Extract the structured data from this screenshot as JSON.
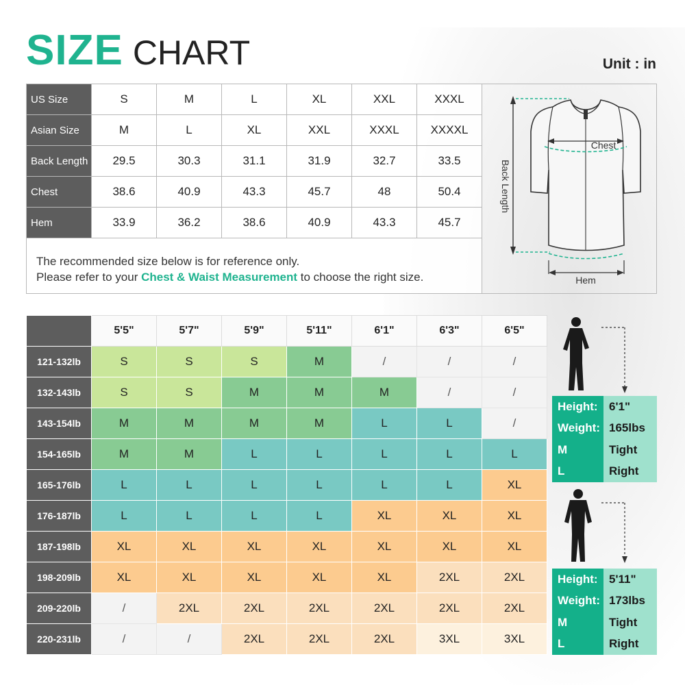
{
  "header": {
    "title_strong": "SIZE",
    "title_light": "CHART",
    "unit": "Unit : in"
  },
  "measurements": {
    "rows": [
      {
        "label": "US Size",
        "values": [
          "S",
          "M",
          "L",
          "XL",
          "XXL",
          "XXXL"
        ]
      },
      {
        "label": "Asian Size",
        "values": [
          "M",
          "L",
          "XL",
          "XXL",
          "XXXL",
          "XXXXL"
        ]
      },
      {
        "label": "Back Length",
        "values": [
          "29.5",
          "30.3",
          "31.1",
          "31.9",
          "32.7",
          "33.5"
        ]
      },
      {
        "label": "Chest",
        "values": [
          "38.6",
          "40.9",
          "43.3",
          "45.7",
          "48",
          "50.4"
        ]
      },
      {
        "label": "Hem",
        "values": [
          "33.9",
          "36.2",
          "38.6",
          "40.9",
          "43.3",
          "45.7"
        ]
      }
    ]
  },
  "note": {
    "line1": "The recommended size below is for reference only.",
    "line2_pre": "Please refer to your ",
    "line2_em": "Chest & Waist Measurement",
    "line2_post": " to choose the right size."
  },
  "diagram": {
    "chest": "Chest",
    "back_length": "Back Length",
    "hem": "Hem"
  },
  "fit_chart": {
    "heights": [
      "5'5\"",
      "5'7\"",
      "5'9\"",
      "5'11\"",
      "6'1\"",
      "6'3\"",
      "6'5\""
    ],
    "rows": [
      {
        "weight": "121-132lb",
        "sizes": [
          "S",
          "S",
          "S",
          "M",
          "/",
          "/",
          "/"
        ]
      },
      {
        "weight": "132-143lb",
        "sizes": [
          "S",
          "S",
          "M",
          "M",
          "M",
          "/",
          "/"
        ]
      },
      {
        "weight": "143-154lb",
        "sizes": [
          "M",
          "M",
          "M",
          "M",
          "L",
          "L",
          "/"
        ]
      },
      {
        "weight": "154-165lb",
        "sizes": [
          "M",
          "M",
          "L",
          "L",
          "L",
          "L",
          "L"
        ]
      },
      {
        "weight": "165-176lb",
        "sizes": [
          "L",
          "L",
          "L",
          "L",
          "L",
          "L",
          "XL"
        ]
      },
      {
        "weight": "176-187lb",
        "sizes": [
          "L",
          "L",
          "L",
          "L",
          "XL",
          "XL",
          "XL"
        ]
      },
      {
        "weight": "187-198lb",
        "sizes": [
          "XL",
          "XL",
          "XL",
          "XL",
          "XL",
          "XL",
          "XL"
        ]
      },
      {
        "weight": "198-209lb",
        "sizes": [
          "XL",
          "XL",
          "XL",
          "XL",
          "XL",
          "2XL",
          "2XL"
        ]
      },
      {
        "weight": "209-220lb",
        "sizes": [
          "/",
          "2XL",
          "2XL",
          "2XL",
          "2XL",
          "2XL",
          "2XL"
        ]
      },
      {
        "weight": "220-231lb",
        "sizes": [
          "/",
          "/",
          "2XL",
          "2XL",
          "2XL",
          "3XL",
          "3XL"
        ]
      }
    ]
  },
  "models": [
    {
      "height_label": "Height:",
      "height": "6'1\"",
      "weight_label": "Weight:",
      "weight": "165lbs",
      "fit1_size": "M",
      "fit1": "Tight",
      "fit2_size": "L",
      "fit2": "Right"
    },
    {
      "height_label": "Height:",
      "height": "5'11\"",
      "weight_label": "Weight:",
      "weight": "173lbs",
      "fit1_size": "M",
      "fit1": "Tight",
      "fit2_size": "L",
      "fit2": "Right"
    }
  ],
  "colors": {
    "brand_green": "#1fb38f",
    "header_gray": "#5d5d5d",
    "size_S": "#c9e69a",
    "size_M": "#88cb93",
    "size_L": "#79c9c3",
    "size_XL": "#fccb8f",
    "size_2XL": "#fbdfbd",
    "size_3XL": "#fdf1de",
    "size_none": "#f3f3f3"
  }
}
